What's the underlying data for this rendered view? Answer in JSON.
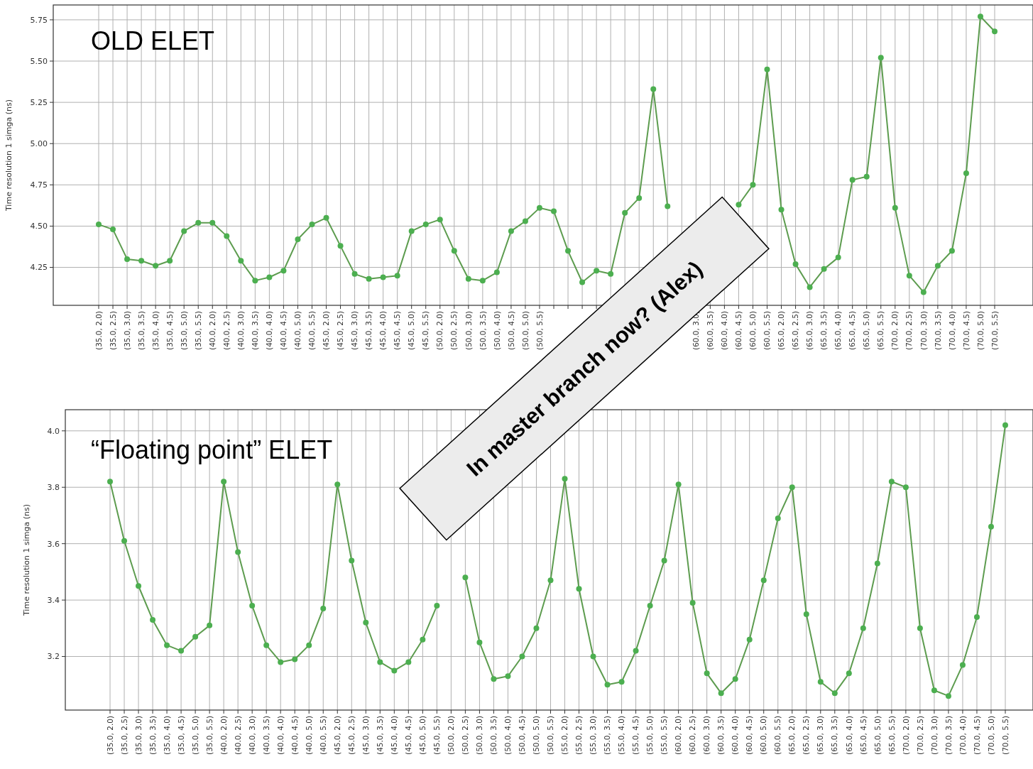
{
  "chart_data": [
    {
      "type": "line",
      "title": "OLD ELET",
      "ylabel": "Time resolution 1 simga (ns)",
      "grid": true,
      "marker": "circle",
      "annotations": [
        "In master branch now? (Alex)"
      ],
      "categories": [
        "(35.0, 2.0)",
        "(35.0, 2.5)",
        "(35.0, 3.0)",
        "(35.0, 3.5)",
        "(35.0, 4.0)",
        "(35.0, 4.5)",
        "(35.0, 5.0)",
        "(35.0, 5.5)",
        "(40.0, 2.0)",
        "(40.0, 2.5)",
        "(40.0, 3.0)",
        "(40.0, 3.5)",
        "(40.0, 4.0)",
        "(40.0, 4.5)",
        "(40.0, 5.0)",
        "(40.0, 5.5)",
        "(45.0, 2.0)",
        "(45.0, 2.5)",
        "(45.0, 3.0)",
        "(45.0, 3.5)",
        "(45.0, 4.0)",
        "(45.0, 4.5)",
        "(45.0, 5.0)",
        "(45.0, 5.5)",
        "(50.0, 2.0)",
        "(50.0, 2.5)",
        "(50.0, 3.0)",
        "(50.0, 3.5)",
        "(50.0, 4.0)",
        "(50.0, 4.5)",
        "(50.0, 5.0)",
        "(50.0, 5.5)",
        null,
        null,
        null,
        null,
        null,
        null,
        null,
        null,
        null,
        null,
        "(60.0, 3.0)",
        "(60.0, 3.5)",
        "(60.0, 4.0)",
        "(60.0, 4.5)",
        "(60.0, 5.0)",
        "(60.0, 5.5)",
        "(65.0, 2.0)",
        "(65.0, 2.5)",
        "(65.0, 3.0)",
        "(65.0, 3.5)",
        "(65.0, 4.0)",
        "(65.0, 4.5)",
        "(65.0, 5.0)",
        "(65.0, 5.5)",
        "(70.0, 2.0)",
        "(70.0, 2.5)",
        "(70.0, 3.0)",
        "(70.0, 3.5)",
        "(70.0, 4.0)",
        "(70.0, 4.5)",
        "(70.0, 5.0)",
        "(70.0, 5.5)"
      ],
      "series": [
        {
          "color": "#4caf50",
          "values": [
            4.51,
            4.48,
            4.3,
            4.29,
            4.26,
            4.29,
            4.47,
            4.52,
            4.52,
            4.44,
            4.29,
            4.17,
            4.19,
            4.23,
            4.42,
            4.51,
            4.55,
            4.38,
            4.21,
            4.18,
            4.19,
            4.2,
            4.47,
            4.51,
            4.54,
            4.35,
            4.18,
            4.17,
            4.22,
            4.47,
            4.53,
            4.61,
            4.59,
            4.35,
            4.16,
            4.23,
            4.21,
            4.58,
            4.67,
            5.33,
            4.62,
            null,
            null,
            null,
            null,
            4.63,
            4.75,
            5.45,
            4.6,
            4.27,
            4.13,
            4.24,
            4.31,
            4.78,
            4.8,
            5.52,
            4.61,
            4.2,
            4.1,
            4.26,
            4.35,
            4.82,
            5.77,
            5.68
          ]
        }
      ],
      "ylim": [
        4.02,
        5.84
      ],
      "yticks": [
        {
          "value": 4.25,
          "label": "4.25"
        },
        {
          "value": 4.5,
          "label": "4.50"
        },
        {
          "value": 4.75,
          "label": "4.75"
        },
        {
          "value": 5,
          "label": "5.00"
        },
        {
          "value": 5.25,
          "label": "5.25"
        },
        {
          "value": 5.5,
          "label": "5.50"
        },
        {
          "value": 5.75,
          "label": "5.75"
        }
      ]
    },
    {
      "type": "line",
      "title": "“Floating point” ELET",
      "ylabel": "Time resolution 1 simga (ns)",
      "grid": true,
      "marker": "circle",
      "categories": [
        "(35.0, 2.0)",
        "(35.0, 2.5)",
        "(35.0, 3.0)",
        "(35.0, 3.5)",
        "(35.0, 4.0)",
        "(35.0, 4.5)",
        "(35.0, 5.0)",
        "(35.0, 5.5)",
        "(40.0, 2.0)",
        "(40.0, 2.5)",
        "(40.0, 3.0)",
        "(40.0, 3.5)",
        "(40.0, 4.0)",
        "(40.0, 4.5)",
        "(40.0, 5.0)",
        "(40.0, 5.5)",
        "(45.0, 2.0)",
        "(45.0, 2.5)",
        "(45.0, 3.0)",
        "(45.0, 3.5)",
        "(45.0, 4.0)",
        "(45.0, 4.5)",
        "(45.0, 5.0)",
        "(45.0, 5.5)",
        "(50.0, 2.0)",
        "(50.0, 2.5)",
        "(50.0, 3.0)",
        "(50.0, 3.5)",
        "(50.0, 4.0)",
        "(50.0, 4.5)",
        "(50.0, 5.0)",
        "(50.0, 5.5)",
        "(55.0, 2.0)",
        "(55.0, 2.5)",
        "(55.0, 3.0)",
        "(55.0, 3.5)",
        "(55.0, 4.0)",
        "(55.0, 4.5)",
        "(55.0, 5.0)",
        "(55.0, 5.5)",
        "(60.0, 2.0)",
        "(60.0, 2.5)",
        "(60.0, 3.0)",
        "(60.0, 3.5)",
        "(60.0, 4.0)",
        "(60.0, 4.5)",
        "(60.0, 5.0)",
        "(60.0, 5.5)",
        "(65.0, 2.0)",
        "(65.0, 2.5)",
        "(65.0, 3.0)",
        "(65.0, 3.5)",
        "(65.0, 4.0)",
        "(65.0, 4.5)",
        "(65.0, 5.0)",
        "(65.0, 5.5)",
        "(70.0, 2.0)",
        "(70.0, 2.5)",
        "(70.0, 3.0)",
        "(70.0, 3.5)",
        "(70.0, 4.0)",
        "(70.0, 4.5)",
        "(70.0, 5.0)",
        "(70.0, 5.5)"
      ],
      "series": [
        {
          "color": "#4caf50",
          "values": [
            3.82,
            3.61,
            3.45,
            3.33,
            3.24,
            3.22,
            3.27,
            3.31,
            3.82,
            3.57,
            3.38,
            3.24,
            3.18,
            3.19,
            3.24,
            3.37,
            3.81,
            3.54,
            3.32,
            3.18,
            3.15,
            3.18,
            3.26,
            3.38,
            null,
            3.48,
            3.25,
            3.12,
            3.13,
            3.2,
            3.3,
            3.47,
            3.83,
            3.44,
            3.2,
            3.1,
            3.11,
            3.22,
            3.38,
            3.54,
            3.81,
            3.39,
            3.14,
            3.07,
            3.12,
            3.26,
            3.47,
            3.69,
            3.8,
            3.35,
            3.11,
            3.07,
            3.14,
            3.3,
            3.53,
            3.82,
            3.8,
            3.3,
            3.08,
            3.06,
            3.17,
            3.34,
            3.66,
            4.02
          ]
        }
      ],
      "ylim": [
        3.01,
        4.075
      ],
      "yticks": [
        {
          "value": 3.2,
          "label": "3.2"
        },
        {
          "value": 3.4,
          "label": "3.4"
        },
        {
          "value": 3.6,
          "label": "3.6"
        },
        {
          "value": 3.8,
          "label": "3.8"
        },
        {
          "value": 4,
          "label": "4.0"
        }
      ]
    }
  ]
}
